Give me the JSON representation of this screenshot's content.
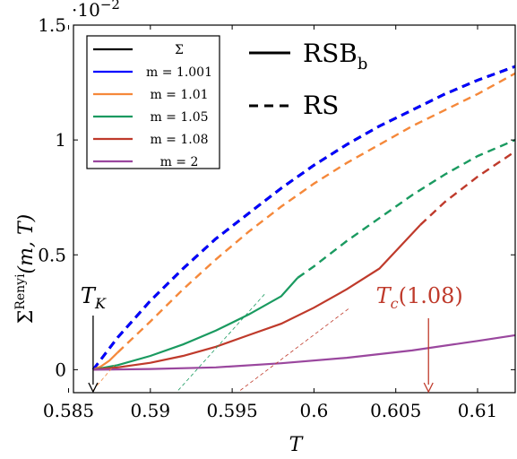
{
  "chart_data": {
    "type": "line",
    "xlabel": "T",
    "ylabel": "Σ^Renyi(m, T)",
    "ylabel_main": "Σ",
    "ylabel_sup": "Renyi",
    "ylabel_args": "(m, T)",
    "xlim": [
      0.5853,
      0.6123
    ],
    "ylim": [
      -0.1,
      1.5
    ],
    "y_multiplier": "·10",
    "y_multiplier_exp": "−2",
    "x_ticks": [
      0.585,
      0.59,
      0.595,
      0.6,
      0.605,
      0.61
    ],
    "x_tick_labels": [
      "0.585",
      "0.59",
      "0.595",
      "0.6",
      "0.605",
      "0.61"
    ],
    "y_ticks": [
      0,
      0.5,
      1,
      1.5
    ],
    "y_tick_labels": [
      "0",
      "0.5",
      "1",
      "1.5"
    ],
    "legend_position": "top-left",
    "series": [
      {
        "name": "Σ",
        "color": "#000000",
        "solid": {
          "x": [],
          "y": []
        },
        "dashed": {
          "x": [
            0.5865,
            0.588,
            0.59,
            0.592,
            0.594,
            0.596,
            0.598,
            0.6,
            0.602,
            0.604,
            0.606,
            0.608,
            0.61,
            0.6123
          ],
          "y": [
            0,
            0.14,
            0.3,
            0.44,
            0.57,
            0.68,
            0.79,
            0.89,
            0.98,
            1.06,
            1.13,
            1.2,
            1.26,
            1.32
          ]
        }
      },
      {
        "name": "m = 1.001",
        "color": "#0000ff",
        "solid": {
          "x": [],
          "y": []
        },
        "dashed": {
          "x": [
            0.5865,
            0.588,
            0.59,
            0.592,
            0.594,
            0.596,
            0.598,
            0.6,
            0.602,
            0.604,
            0.606,
            0.608,
            0.61,
            0.6123
          ],
          "y": [
            0,
            0.14,
            0.3,
            0.44,
            0.57,
            0.68,
            0.79,
            0.89,
            0.98,
            1.06,
            1.13,
            1.2,
            1.26,
            1.32
          ]
        }
      },
      {
        "name": "m = 1.01",
        "color": "#f5883a",
        "solid": {
          "x": [
            0.5865,
            0.587,
            0.5875,
            0.588
          ],
          "y": [
            0,
            0.015,
            0.04,
            0.075
          ]
        },
        "dashed": {
          "x": [
            0.588,
            0.59,
            0.592,
            0.594,
            0.596,
            0.598,
            0.6,
            0.602,
            0.604,
            0.606,
            0.608,
            0.61,
            0.6123
          ],
          "y": [
            0.075,
            0.21,
            0.35,
            0.48,
            0.6,
            0.71,
            0.81,
            0.9,
            0.98,
            1.06,
            1.13,
            1.2,
            1.29
          ]
        }
      },
      {
        "name": "m = 1.05",
        "color": "#1a9a60",
        "solid": {
          "x": [
            0.5865,
            0.588,
            0.59,
            0.592,
            0.594,
            0.596,
            0.598,
            0.599
          ],
          "y": [
            0,
            0.02,
            0.06,
            0.11,
            0.17,
            0.24,
            0.32,
            0.4
          ]
        },
        "dashed": {
          "x": [
            0.599,
            0.6,
            0.602,
            0.604,
            0.606,
            0.608,
            0.61,
            0.6123
          ],
          "y": [
            0.4,
            0.45,
            0.56,
            0.66,
            0.76,
            0.85,
            0.93,
            1.0
          ]
        }
      },
      {
        "name": "m = 1.08",
        "color": "#bf3a2b",
        "solid": {
          "x": [
            0.5865,
            0.588,
            0.59,
            0.592,
            0.594,
            0.596,
            0.598,
            0.6,
            0.602,
            0.604,
            0.6065
          ],
          "y": [
            0,
            0.01,
            0.03,
            0.06,
            0.1,
            0.15,
            0.2,
            0.27,
            0.35,
            0.44,
            0.63
          ]
        },
        "dashed": {
          "x": [
            0.6065,
            0.608,
            0.61,
            0.6123
          ],
          "y": [
            0.63,
            0.73,
            0.84,
            0.95
          ]
        }
      },
      {
        "name": "m = 2",
        "color": "#9a479e",
        "solid": {
          "x": [
            0.5865,
            0.59,
            0.594,
            0.598,
            0.602,
            0.606,
            0.61,
            0.6123
          ],
          "y": [
            0,
            0.003,
            0.01,
            0.028,
            0.052,
            0.084,
            0.125,
            0.15
          ]
        },
        "dashed": {
          "x": [],
          "y": []
        }
      }
    ],
    "style_legend": [
      {
        "label": "RSB",
        "subscript": "b",
        "style": "solid"
      },
      {
        "label": "RS",
        "subscript": "",
        "style": "dashed"
      }
    ],
    "thin_dashed_lines": [
      {
        "color": "#f5883a",
        "x": [
          0.5865,
          0.5878
        ],
        "y": [
          -0.09,
          0.02
        ]
      },
      {
        "color": "#1a9a60",
        "x": [
          0.5917,
          0.597
        ],
        "y": [
          -0.09,
          0.33
        ]
      },
      {
        "color": "#bf3a2b",
        "x": [
          0.5955,
          0.6022
        ],
        "y": [
          -0.09,
          0.27
        ]
      }
    ],
    "annotations": [
      {
        "label": "T",
        "subscript": "K",
        "x": 0.5865,
        "color": "#000000",
        "arrow": true
      },
      {
        "label": "T",
        "subscript": "c",
        "suffix": "(1.08)",
        "x": 0.607,
        "color": "#bf3a2b",
        "arrow": true
      }
    ]
  }
}
